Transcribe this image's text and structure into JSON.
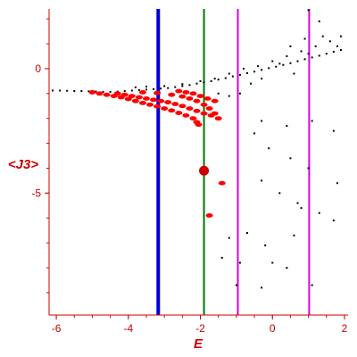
{
  "chart_data": {
    "type": "scatter",
    "title": "",
    "xlabel": "E",
    "ylabel": "<J3>",
    "xlim": [
      -6.2,
      2.1
    ],
    "ylim": [
      -9.9,
      2.4
    ],
    "xticks": [
      -6,
      -4,
      -2,
      0,
      2
    ],
    "yticks": [
      0,
      -5
    ],
    "grid": false,
    "colors": {
      "axis": "#cc0000",
      "black_points": "#000000",
      "red_points": "#ff0000",
      "blue_line": "#0000dd",
      "green_line": "#007700",
      "magenta_line": "#dd00dd"
    },
    "vertical_lines": [
      {
        "x": -3.17,
        "color": "#0000dd"
      },
      {
        "x": -1.9,
        "color": "#007700"
      },
      {
        "x": -0.96,
        "color": "#dd00dd"
      },
      {
        "x": 1.02,
        "color": "#dd00dd"
      }
    ],
    "marker": {
      "x": -1.9,
      "y": -4.1,
      "color": "#cc0000"
    },
    "series": [
      {
        "color": "#000000",
        "points": [
          [
            -6.1,
            -0.88
          ],
          [
            -5.9,
            -0.88
          ],
          [
            -5.7,
            -0.89
          ],
          [
            -5.5,
            -0.9
          ],
          [
            -5.3,
            -0.9
          ],
          [
            -5.1,
            -0.91
          ],
          [
            -4.9,
            -0.92
          ],
          [
            -4.7,
            -0.93
          ],
          [
            -4.5,
            -0.93
          ],
          [
            -4.3,
            -0.92
          ],
          [
            -4.1,
            -0.9
          ],
          [
            -3.9,
            -0.88
          ],
          [
            -3.7,
            -0.86
          ],
          [
            -3.5,
            -0.84
          ],
          [
            -3.3,
            -0.82
          ],
          [
            -3.1,
            -0.8
          ],
          [
            -2.9,
            -0.78
          ],
          [
            -2.7,
            -0.74
          ],
          [
            -2.5,
            -0.7
          ],
          [
            -2.3,
            -0.66
          ],
          [
            -2.1,
            -0.6
          ],
          [
            -1.9,
            -0.55
          ],
          [
            -1.7,
            -0.5
          ],
          [
            -1.5,
            -0.44
          ],
          [
            -1.3,
            -0.38
          ],
          [
            -1.1,
            -0.31
          ],
          [
            -0.9,
            -0.25
          ],
          [
            -0.7,
            -0.18
          ],
          [
            -0.5,
            -0.12
          ],
          [
            -0.3,
            -0.05
          ],
          [
            -0.1,
            0.02
          ],
          [
            0.1,
            0.08
          ],
          [
            0.3,
            0.15
          ],
          [
            0.5,
            0.22
          ],
          [
            0.7,
            0.3
          ],
          [
            0.9,
            0.38
          ],
          [
            1.1,
            0.45
          ],
          [
            1.3,
            0.52
          ],
          [
            1.5,
            0.6
          ],
          [
            1.7,
            0.68
          ],
          [
            1.9,
            0.75
          ],
          [
            -3.8,
            -0.75
          ],
          [
            -3.5,
            -0.72
          ],
          [
            -3.0,
            -0.7
          ],
          [
            -2.5,
            -0.62
          ],
          [
            -2.0,
            -0.5
          ],
          [
            -1.6,
            -0.4
          ],
          [
            -1.2,
            -0.2
          ],
          [
            -0.8,
            0.0
          ],
          [
            -0.4,
            0.1
          ],
          [
            0.0,
            0.3
          ],
          [
            0.4,
            0.5
          ],
          [
            0.8,
            0.7
          ],
          [
            1.2,
            0.9
          ],
          [
            1.6,
            1.1
          ],
          [
            1.9,
            1.3
          ],
          [
            -1.5,
            -1.0
          ],
          [
            -1.2,
            -1.1
          ],
          [
            -0.9,
            -1.0
          ],
          [
            -0.6,
            -0.6
          ],
          [
            -0.3,
            -0.4
          ],
          [
            0.2,
            0.2
          ],
          [
            0.6,
            -0.2
          ],
          [
            1.0,
            0.6
          ],
          [
            1.4,
            1.3
          ],
          [
            1.8,
            0.9
          ],
          [
            0.5,
            0.9
          ],
          [
            0.9,
            1.2
          ],
          [
            1.3,
            1.9
          ],
          [
            1.0,
            2.35
          ],
          [
            -0.3,
            -2.1
          ],
          [
            -0.5,
            -2.6
          ],
          [
            0.4,
            -2.3
          ],
          [
            1.1,
            -2.1
          ],
          [
            1.7,
            -2.5
          ],
          [
            -0.1,
            -3.2
          ],
          [
            0.5,
            -3.6
          ],
          [
            1.0,
            -4.0
          ],
          [
            -0.3,
            -4.5
          ],
          [
            0.2,
            -5.0
          ],
          [
            0.7,
            -5.4
          ],
          [
            1.8,
            -4.6
          ],
          [
            0.8,
            -5.6
          ],
          [
            1.3,
            -5.8
          ],
          [
            1.7,
            -6.1
          ],
          [
            -0.7,
            -6.6
          ],
          [
            -1.2,
            -6.8
          ],
          [
            -0.2,
            -7.1
          ],
          [
            0.6,
            -6.7
          ],
          [
            -1.4,
            -7.6
          ],
          [
            -0.9,
            -7.8
          ],
          [
            0.0,
            -7.8
          ],
          [
            0.4,
            -8.0
          ],
          [
            -1.0,
            -8.7
          ],
          [
            -0.3,
            -8.8
          ],
          [
            1.1,
            -8.7
          ]
        ]
      },
      {
        "color": "#ff0000",
        "points": [
          [
            -5.0,
            -0.95
          ],
          [
            -4.8,
            -1.0
          ],
          [
            -4.6,
            -1.05
          ],
          [
            -4.4,
            -1.1
          ],
          [
            -4.2,
            -1.15
          ],
          [
            -4.0,
            -1.22
          ],
          [
            -3.8,
            -1.3
          ],
          [
            -3.6,
            -1.38
          ],
          [
            -3.4,
            -1.45
          ],
          [
            -3.2,
            -1.52
          ],
          [
            -3.0,
            -1.6
          ],
          [
            -2.8,
            -1.68
          ],
          [
            -2.6,
            -1.78
          ],
          [
            -2.4,
            -1.88
          ],
          [
            -2.2,
            -2.0
          ],
          [
            -2.1,
            -2.15
          ],
          [
            -2.05,
            -2.25
          ],
          [
            -4.3,
            -1.0
          ],
          [
            -4.1,
            -1.05
          ],
          [
            -3.9,
            -1.1
          ],
          [
            -3.7,
            -1.15
          ],
          [
            -3.5,
            -1.2
          ],
          [
            -3.3,
            -1.25
          ],
          [
            -3.1,
            -1.3
          ],
          [
            -2.9,
            -1.35
          ],
          [
            -2.7,
            -1.42
          ],
          [
            -2.5,
            -1.5
          ],
          [
            -2.3,
            -1.6
          ],
          [
            -2.1,
            -1.7
          ],
          [
            -1.9,
            -1.8
          ],
          [
            -1.7,
            -1.88
          ],
          [
            -3.6,
            -0.95
          ],
          [
            -3.2,
            -0.98
          ],
          [
            -2.8,
            -1.05
          ],
          [
            -2.5,
            -1.12
          ],
          [
            -2.3,
            -1.2
          ],
          [
            -2.1,
            -1.3
          ],
          [
            -1.9,
            -1.45
          ],
          [
            -1.75,
            -1.6
          ],
          [
            -1.6,
            -1.8
          ],
          [
            -2.6,
            -0.9
          ],
          [
            -2.4,
            -0.95
          ],
          [
            -2.2,
            -1.0
          ],
          [
            -2.0,
            -1.1
          ],
          [
            -1.8,
            -1.2
          ],
          [
            -1.6,
            -1.3
          ],
          [
            -1.5,
            -2.0
          ],
          [
            -1.4,
            -4.6
          ],
          [
            -1.75,
            -5.9
          ]
        ]
      }
    ]
  }
}
